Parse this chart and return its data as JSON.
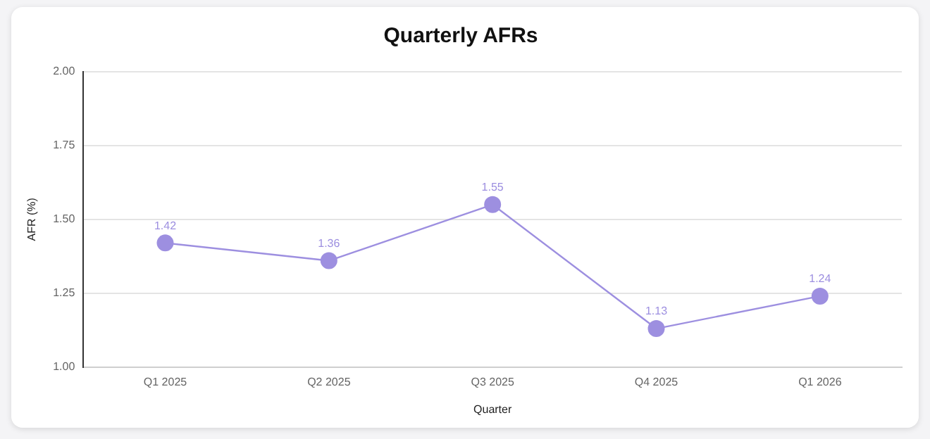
{
  "chart_data": {
    "type": "line",
    "title": "Quarterly AFRs",
    "xlabel": "Quarter",
    "ylabel": "AFR (%)",
    "categories": [
      "Q1 2025",
      "Q2 2025",
      "Q3 2025",
      "Q4 2025",
      "Q1 2026"
    ],
    "series": [
      {
        "color": "#9d8fe0",
        "values": [
          1.42,
          1.36,
          1.55,
          1.13,
          1.24
        ]
      }
    ],
    "ylim": [
      1.0,
      2.0
    ],
    "yticks": [
      {
        "value": 1,
        "label": "1.00"
      },
      {
        "value": 1.25,
        "label": "1.25"
      },
      {
        "value": 1.5,
        "label": "1.50"
      },
      {
        "value": 1.75,
        "label": "1.75"
      },
      {
        "value": 2,
        "label": "2.00"
      }
    ],
    "grid": "y",
    "legend": false,
    "marker": "circle",
    "line_style": "solid",
    "data_labels": true
  }
}
